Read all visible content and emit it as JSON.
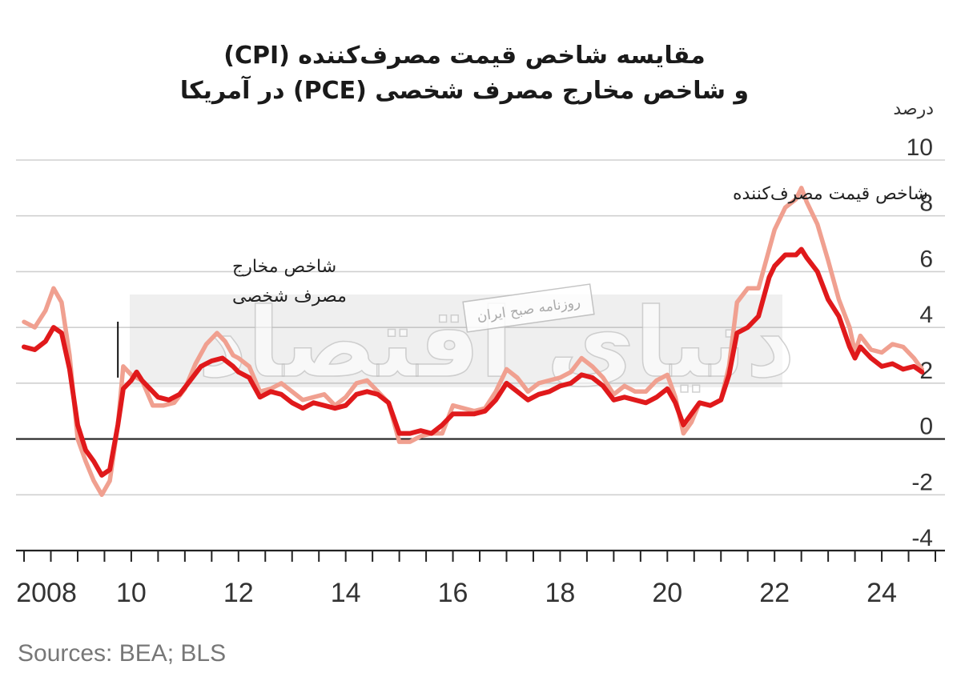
{
  "title_line1": "مقایسه شاخص قیمت مصرف‌کننده (CPI)",
  "title_line2": "و شاخص مخارج مصرف شخصی (PCE) در آمریکا",
  "unit_label": "درصد",
  "source": "Sources: BEA; BLS",
  "watermark": {
    "big_text": "دنیای اقتصاد",
    "small_text": "روزنامه صبح ایران"
  },
  "colors": {
    "cpi": "#f0a090",
    "pce": "#e0191b",
    "grid": "#d0d0d0",
    "zero": "#222222"
  },
  "chart_data": {
    "type": "line",
    "title": "مقایسه شاخص قیمت مصرف‌کننده (CPI) و شاخص مخارج مصرف شخصی (PCE) در آمریکا",
    "ylabel": "درصد",
    "ylim": [
      -4,
      10
    ],
    "yticks": [
      -4,
      -2,
      0,
      2,
      4,
      6,
      8,
      10
    ],
    "xlim": [
      2007.85,
      2025.0
    ],
    "xticks": [
      {
        "value": 2008,
        "label": "2008"
      },
      {
        "value": 2010,
        "label": "10"
      },
      {
        "value": 2012,
        "label": "12"
      },
      {
        "value": 2014,
        "label": "14"
      },
      {
        "value": 2016,
        "label": "16"
      },
      {
        "value": 2018,
        "label": "18"
      },
      {
        "value": 2020,
        "label": "20"
      },
      {
        "value": 2022,
        "label": "22"
      },
      {
        "value": 2024,
        "label": "24"
      }
    ],
    "grid": true,
    "annotations": [
      {
        "text": "شاخص قیمت مصرف‌کننده",
        "series": "CPI"
      },
      {
        "text_lines": [
          "شاخص مخارج",
          "مصرف شخصی"
        ],
        "series": "PCE",
        "x": 2009.75,
        "y": 2.2
      }
    ],
    "series": [
      {
        "name": "شاخص قیمت مصرف‌کننده",
        "key": "CPI",
        "points": [
          [
            2008.0,
            4.2
          ],
          [
            2008.2,
            4.0
          ],
          [
            2008.4,
            4.6
          ],
          [
            2008.55,
            5.4
          ],
          [
            2008.7,
            4.9
          ],
          [
            2008.85,
            3.0
          ],
          [
            2009.0,
            0.0
          ],
          [
            2009.15,
            -0.8
          ],
          [
            2009.3,
            -1.5
          ],
          [
            2009.45,
            -2.0
          ],
          [
            2009.6,
            -1.5
          ],
          [
            2009.75,
            0.5
          ],
          [
            2009.85,
            2.6
          ],
          [
            2010.0,
            2.3
          ],
          [
            2010.2,
            2.1
          ],
          [
            2010.4,
            1.2
          ],
          [
            2010.6,
            1.2
          ],
          [
            2010.8,
            1.3
          ],
          [
            2011.0,
            1.8
          ],
          [
            2011.2,
            2.7
          ],
          [
            2011.4,
            3.4
          ],
          [
            2011.6,
            3.8
          ],
          [
            2011.75,
            3.5
          ],
          [
            2011.9,
            3.0
          ],
          [
            2012.0,
            2.9
          ],
          [
            2012.2,
            2.6
          ],
          [
            2012.4,
            1.7
          ],
          [
            2012.6,
            1.8
          ],
          [
            2012.8,
            2.0
          ],
          [
            2013.0,
            1.7
          ],
          [
            2013.2,
            1.4
          ],
          [
            2013.4,
            1.5
          ],
          [
            2013.6,
            1.6
          ],
          [
            2013.8,
            1.2
          ],
          [
            2014.0,
            1.5
          ],
          [
            2014.2,
            2.0
          ],
          [
            2014.4,
            2.1
          ],
          [
            2014.6,
            1.7
          ],
          [
            2014.8,
            1.3
          ],
          [
            2015.0,
            -0.1
          ],
          [
            2015.2,
            -0.1
          ],
          [
            2015.4,
            0.1
          ],
          [
            2015.6,
            0.2
          ],
          [
            2015.8,
            0.2
          ],
          [
            2016.0,
            1.2
          ],
          [
            2016.2,
            1.1
          ],
          [
            2016.4,
            1.0
          ],
          [
            2016.6,
            1.1
          ],
          [
            2016.8,
            1.7
          ],
          [
            2017.0,
            2.5
          ],
          [
            2017.2,
            2.2
          ],
          [
            2017.4,
            1.7
          ],
          [
            2017.6,
            2.0
          ],
          [
            2017.8,
            2.1
          ],
          [
            2018.0,
            2.2
          ],
          [
            2018.2,
            2.4
          ],
          [
            2018.4,
            2.9
          ],
          [
            2018.6,
            2.6
          ],
          [
            2018.8,
            2.2
          ],
          [
            2019.0,
            1.6
          ],
          [
            2019.2,
            1.9
          ],
          [
            2019.4,
            1.7
          ],
          [
            2019.6,
            1.7
          ],
          [
            2019.8,
            2.1
          ],
          [
            2020.0,
            2.3
          ],
          [
            2020.15,
            1.5
          ],
          [
            2020.3,
            0.2
          ],
          [
            2020.45,
            0.6
          ],
          [
            2020.6,
            1.3
          ],
          [
            2020.8,
            1.2
          ],
          [
            2021.0,
            1.4
          ],
          [
            2021.15,
            2.6
          ],
          [
            2021.3,
            4.9
          ],
          [
            2021.5,
            5.4
          ],
          [
            2021.7,
            5.4
          ],
          [
            2021.9,
            6.8
          ],
          [
            2022.0,
            7.5
          ],
          [
            2022.2,
            8.3
          ],
          [
            2022.4,
            8.6
          ],
          [
            2022.5,
            9.0
          ],
          [
            2022.6,
            8.5
          ],
          [
            2022.8,
            7.7
          ],
          [
            2023.0,
            6.4
          ],
          [
            2023.2,
            5.0
          ],
          [
            2023.4,
            4.0
          ],
          [
            2023.5,
            3.1
          ],
          [
            2023.6,
            3.7
          ],
          [
            2023.8,
            3.2
          ],
          [
            2024.0,
            3.1
          ],
          [
            2024.2,
            3.4
          ],
          [
            2024.4,
            3.3
          ],
          [
            2024.6,
            2.9
          ],
          [
            2024.75,
            2.5
          ]
        ]
      },
      {
        "name": "شاخص مخارج مصرف شخصی",
        "key": "PCE",
        "points": [
          [
            2008.0,
            3.3
          ],
          [
            2008.2,
            3.2
          ],
          [
            2008.4,
            3.5
          ],
          [
            2008.55,
            4.0
          ],
          [
            2008.7,
            3.8
          ],
          [
            2008.85,
            2.5
          ],
          [
            2009.0,
            0.5
          ],
          [
            2009.15,
            -0.4
          ],
          [
            2009.3,
            -0.8
          ],
          [
            2009.45,
            -1.3
          ],
          [
            2009.6,
            -1.1
          ],
          [
            2009.75,
            0.5
          ],
          [
            2009.85,
            1.8
          ],
          [
            2010.0,
            2.1
          ],
          [
            2010.1,
            2.4
          ],
          [
            2010.2,
            2.1
          ],
          [
            2010.35,
            1.8
          ],
          [
            2010.5,
            1.5
          ],
          [
            2010.7,
            1.4
          ],
          [
            2010.9,
            1.6
          ],
          [
            2011.1,
            2.1
          ],
          [
            2011.3,
            2.6
          ],
          [
            2011.5,
            2.8
          ],
          [
            2011.7,
            2.9
          ],
          [
            2011.9,
            2.6
          ],
          [
            2012.0,
            2.4
          ],
          [
            2012.2,
            2.2
          ],
          [
            2012.4,
            1.5
          ],
          [
            2012.6,
            1.7
          ],
          [
            2012.8,
            1.6
          ],
          [
            2013.0,
            1.3
          ],
          [
            2013.2,
            1.1
          ],
          [
            2013.4,
            1.3
          ],
          [
            2013.6,
            1.2
          ],
          [
            2013.8,
            1.1
          ],
          [
            2014.0,
            1.2
          ],
          [
            2014.2,
            1.6
          ],
          [
            2014.4,
            1.7
          ],
          [
            2014.6,
            1.6
          ],
          [
            2014.8,
            1.3
          ],
          [
            2015.0,
            0.2
          ],
          [
            2015.2,
            0.2
          ],
          [
            2015.4,
            0.3
          ],
          [
            2015.6,
            0.2
          ],
          [
            2015.8,
            0.5
          ],
          [
            2016.0,
            0.9
          ],
          [
            2016.2,
            0.9
          ],
          [
            2016.4,
            0.9
          ],
          [
            2016.6,
            1.0
          ],
          [
            2016.8,
            1.4
          ],
          [
            2017.0,
            2.0
          ],
          [
            2017.2,
            1.7
          ],
          [
            2017.4,
            1.4
          ],
          [
            2017.6,
            1.6
          ],
          [
            2017.8,
            1.7
          ],
          [
            2018.0,
            1.9
          ],
          [
            2018.2,
            2.0
          ],
          [
            2018.4,
            2.3
          ],
          [
            2018.6,
            2.2
          ],
          [
            2018.8,
            1.9
          ],
          [
            2019.0,
            1.4
          ],
          [
            2019.2,
            1.5
          ],
          [
            2019.4,
            1.4
          ],
          [
            2019.6,
            1.3
          ],
          [
            2019.8,
            1.5
          ],
          [
            2020.0,
            1.8
          ],
          [
            2020.15,
            1.3
          ],
          [
            2020.3,
            0.5
          ],
          [
            2020.45,
            0.9
          ],
          [
            2020.6,
            1.3
          ],
          [
            2020.8,
            1.2
          ],
          [
            2021.0,
            1.4
          ],
          [
            2021.15,
            2.3
          ],
          [
            2021.3,
            3.8
          ],
          [
            2021.5,
            4.0
          ],
          [
            2021.7,
            4.4
          ],
          [
            2021.9,
            5.8
          ],
          [
            2022.0,
            6.2
          ],
          [
            2022.2,
            6.6
          ],
          [
            2022.4,
            6.6
          ],
          [
            2022.5,
            6.8
          ],
          [
            2022.6,
            6.5
          ],
          [
            2022.8,
            6.0
          ],
          [
            2023.0,
            5.0
          ],
          [
            2023.2,
            4.4
          ],
          [
            2023.4,
            3.3
          ],
          [
            2023.5,
            2.9
          ],
          [
            2023.6,
            3.3
          ],
          [
            2023.8,
            2.9
          ],
          [
            2024.0,
            2.6
          ],
          [
            2024.2,
            2.7
          ],
          [
            2024.4,
            2.5
          ],
          [
            2024.6,
            2.6
          ],
          [
            2024.75,
            2.4
          ]
        ]
      }
    ]
  }
}
